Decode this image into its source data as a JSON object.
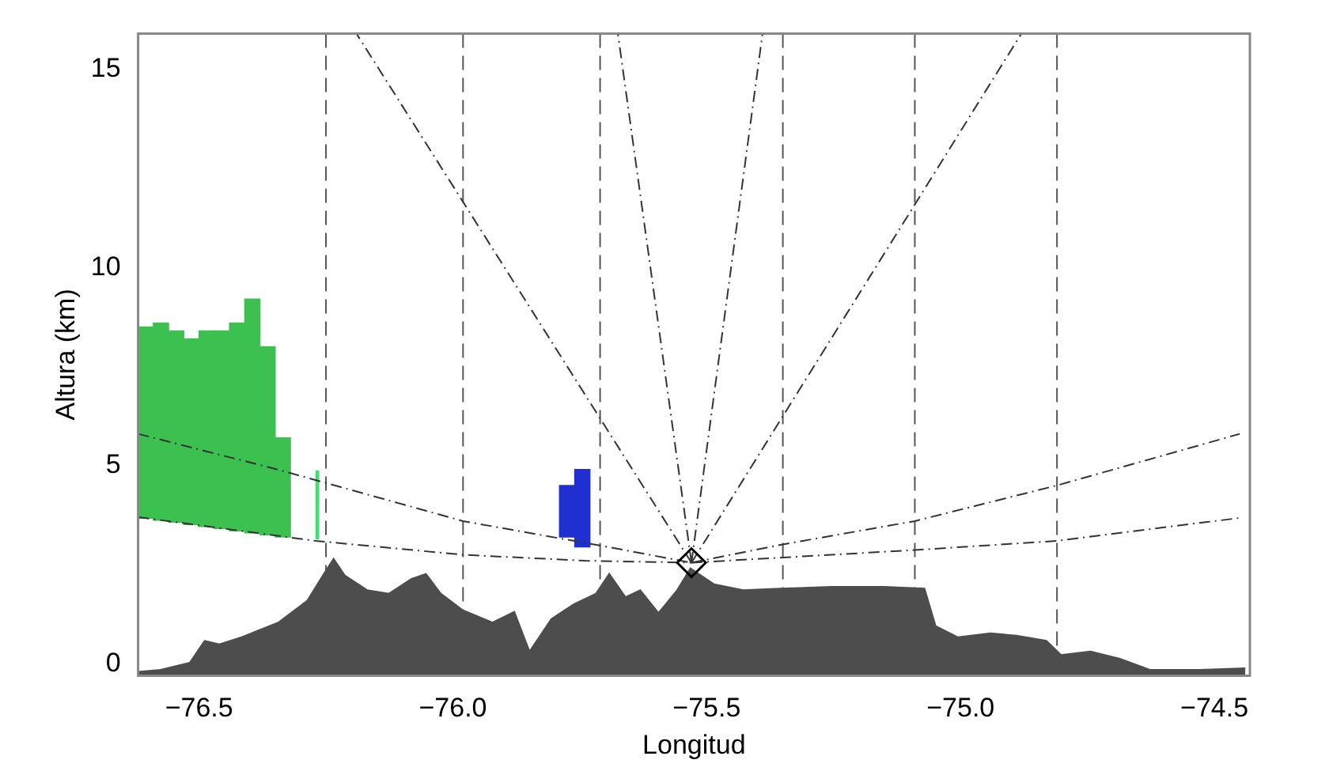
{
  "chart_data": {
    "type": "line",
    "xlabel": "Longitud",
    "ylabel": "Altura (km)",
    "xlim": [
      -76.62,
      -74.43
    ],
    "ylim": [
      -0.3,
      15.9
    ],
    "xticks": [
      {
        "value": -76.5,
        "label": "−76.5"
      },
      {
        "value": -76.0,
        "label": "−76.0"
      },
      {
        "value": -75.5,
        "label": "−75.5"
      },
      {
        "value": -75.0,
        "label": "−75.0"
      },
      {
        "value": -74.5,
        "label": "−74.5"
      }
    ],
    "yticks": [
      0,
      5,
      10,
      15
    ],
    "grid": false,
    "legend": false,
    "line_style": "dashed",
    "series": [
      {
        "type": "area",
        "color": "#4d4d4d",
        "x": [
          -76.62,
          -76.576,
          -76.518,
          -76.489,
          -76.46,
          -76.416,
          -76.344,
          -76.287,
          -76.254,
          -76.235,
          -76.213,
          -76.169,
          -76.126,
          -76.082,
          -76.053,
          -76.024,
          -75.98,
          -75.922,
          -75.879,
          -75.849,
          -75.806,
          -75.762,
          -75.718,
          -75.692,
          -75.66,
          -75.631,
          -75.595,
          -75.558,
          -75.532,
          -75.486,
          -75.428,
          -75.355,
          -75.253,
          -75.151,
          -75.071,
          -75.049,
          -75.005,
          -74.941,
          -74.89,
          -74.831,
          -74.802,
          -74.744,
          -74.686,
          -74.627,
          -74.526,
          -74.439
        ],
        "values": [
          -0.2,
          -0.15,
          0.03,
          0.58,
          0.49,
          0.67,
          1.04,
          1.59,
          2.27,
          2.65,
          2.23,
          1.86,
          1.77,
          2.14,
          2.27,
          1.77,
          1.35,
          1.04,
          1.31,
          0.31,
          1.13,
          1.5,
          1.77,
          2.27,
          1.68,
          1.86,
          1.28,
          1.86,
          2.41,
          2.01,
          1.86,
          1.9,
          1.94,
          1.94,
          1.9,
          0.95,
          0.67,
          0.77,
          0.71,
          0.58,
          0.22,
          0.31,
          0.13,
          -0.15,
          -0.15,
          -0.11
        ]
      },
      {
        "type": "bar",
        "color": "#3cc050",
        "x": [
          -76.605,
          -76.575,
          -76.545,
          -76.515,
          -76.485,
          -76.455,
          -76.425,
          -76.395,
          -76.365,
          -76.335
        ],
        "values": [
          4.83,
          4.98,
          4.83,
          4.69,
          4.94,
          4.99,
          5.25,
          5.9,
          4.75,
          2.5
        ],
        "base": [
          3.67,
          3.62,
          3.57,
          3.51,
          3.46,
          3.41,
          3.35,
          3.3,
          3.25,
          3.2
        ]
      },
      {
        "type": "bar",
        "color": "#40e070",
        "x": [
          -76.267
        ],
        "values": [
          1.74
        ],
        "base": [
          3.14
        ]
      },
      {
        "type": "bar",
        "color": "#2030d0",
        "x": [
          -75.775,
          -75.745
        ],
        "values": [
          1.3,
          1.95
        ],
        "base": [
          3.2,
          2.95
        ]
      },
      {
        "type": "line",
        "color": "#333333",
        "x": [
          -75.53,
          -76.19
        ],
        "values": [
          2.55,
          15.9
        ]
      },
      {
        "type": "line",
        "color": "#333333",
        "x": [
          -75.53,
          -75.675
        ],
        "values": [
          2.55,
          15.9
        ]
      },
      {
        "type": "line",
        "color": "#333333",
        "x": [
          -75.53,
          -75.39
        ],
        "values": [
          2.55,
          15.9
        ]
      },
      {
        "type": "line",
        "color": "#333333",
        "x": [
          -75.53,
          -74.88
        ],
        "values": [
          2.55,
          15.9
        ]
      },
      {
        "type": "line",
        "color": "#333333",
        "x": [
          -76.62,
          -76.345,
          -75.98,
          -75.7,
          -75.53
        ],
        "values": [
          5.8,
          4.9,
          3.6,
          2.96,
          2.55
        ]
      },
      {
        "type": "line",
        "color": "#333333",
        "x": [
          -76.62,
          -76.27,
          -75.98,
          -75.74,
          -75.53
        ],
        "values": [
          3.7,
          3.1,
          2.75,
          2.6,
          2.55
        ]
      },
      {
        "type": "line",
        "color": "#333333",
        "x": [
          -75.53,
          -75.355,
          -75.09,
          -74.81,
          -74.45
        ],
        "values": [
          2.55,
          3.0,
          3.6,
          4.5,
          5.8
        ]
      },
      {
        "type": "line",
        "color": "#333333",
        "x": [
          -75.53,
          -75.09,
          -74.81,
          -74.45
        ],
        "values": [
          2.55,
          2.87,
          3.1,
          3.68
        ]
      },
      {
        "type": "scatter",
        "color": "#000000",
        "marker": "diamond",
        "x": [
          -75.53
        ],
        "values": [
          2.55
        ]
      }
    ],
    "ref_lines": [
      {
        "axis": "x",
        "value": -76.25,
        "color": "#555555",
        "line_style": "dashed"
      },
      {
        "axis": "x",
        "value": -75.98,
        "color": "#555555",
        "line_style": "dashed"
      },
      {
        "axis": "x",
        "value": -75.71,
        "color": "#555555",
        "line_style": "dashed"
      },
      {
        "axis": "x",
        "value": -75.35,
        "color": "#555555",
        "line_style": "dashed"
      },
      {
        "axis": "x",
        "value": -75.09,
        "color": "#555555",
        "line_style": "dashed"
      },
      {
        "axis": "x",
        "value": -74.81,
        "color": "#555555",
        "line_style": "dashed"
      }
    ]
  }
}
